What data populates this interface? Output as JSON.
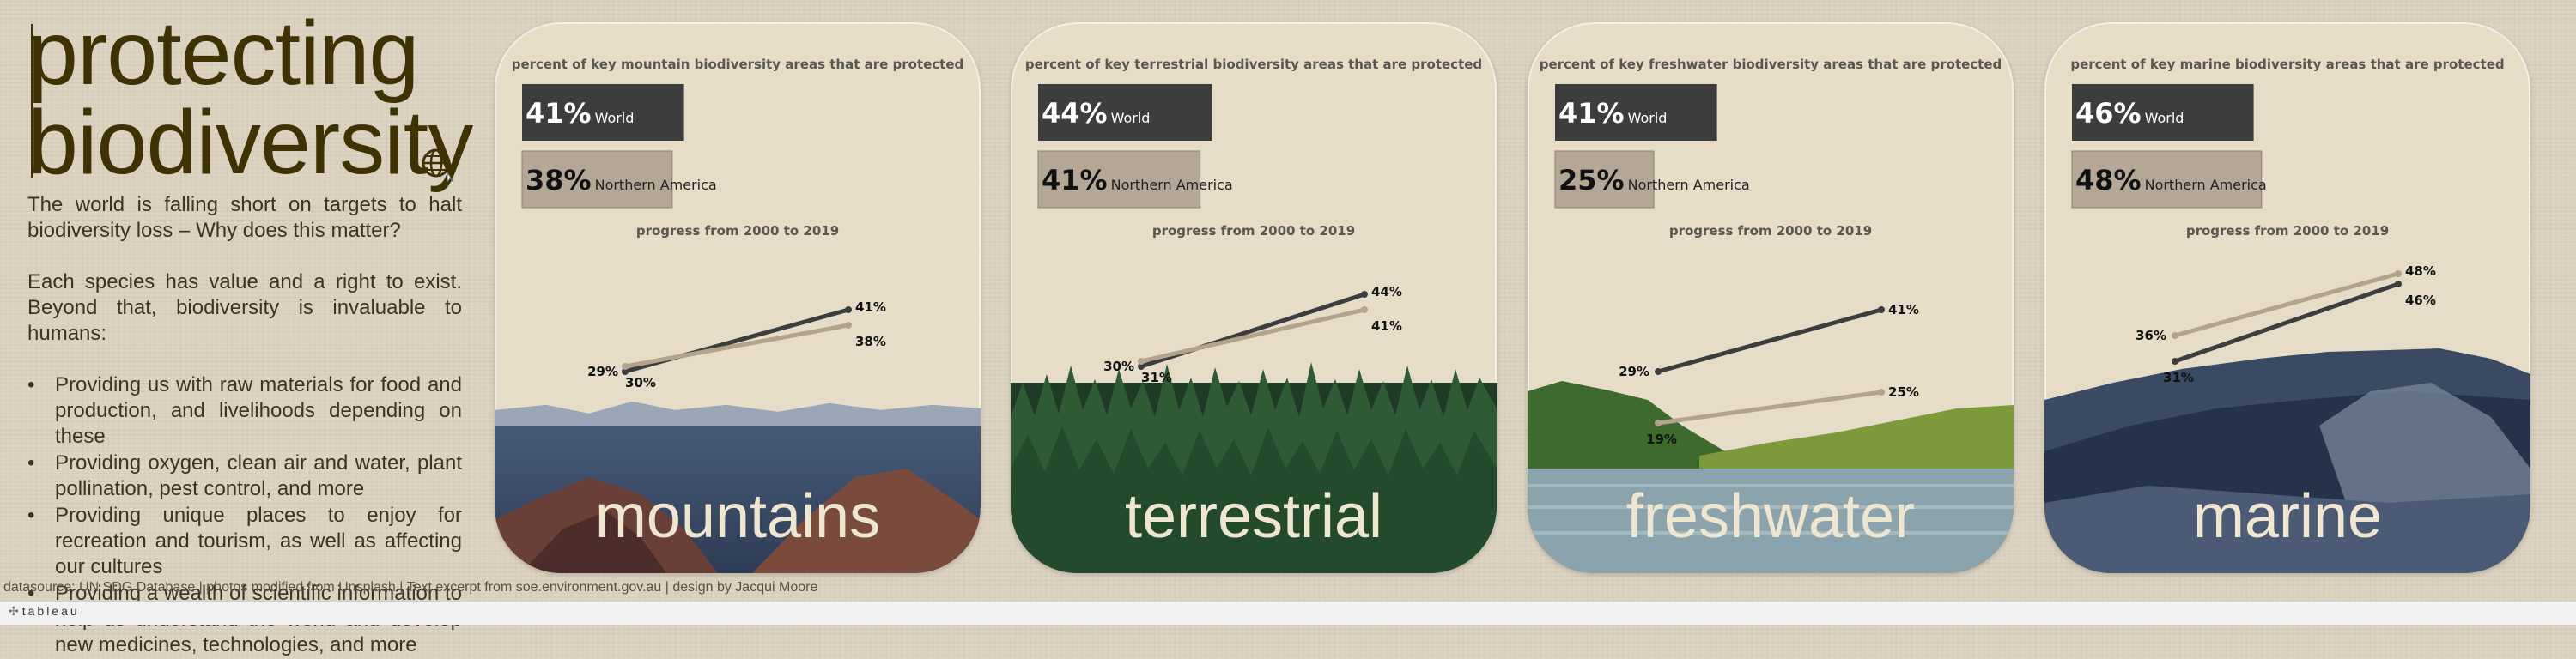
{
  "title": {
    "line1": "protecting",
    "line2": "biodiversity"
  },
  "intro": {
    "p1": "The world is falling short on targets to halt biodiversity loss – Why does this matter?",
    "p2": "Each species has value and a right to exist. Beyond that, biodiversity is invaluable to humans:",
    "bullets": [
      "Providing us with raw materials for food and production, and livelihoods depending on these",
      "Providing oxygen, clean air and water, plant pollination, pest control, and more",
      "Providing unique places to enjoy for recreation and tourism, as well as affecting our cultures",
      "Providing a wealth of scientific information to help us understand the world and develop new medicines, technologies, and more"
    ]
  },
  "footer": {
    "source": "datasource: UN SDG Database | photos modified from Unsplash | Text excerpt from soe.environment.gov.au | design by Jacqui Moore",
    "brand": "tableau"
  },
  "colors": {
    "world": "#3d3d3d",
    "north_america": "#b5a795",
    "accent_text": "#3e3205",
    "panel_bg": "#e6dcc8",
    "na_line": "#b3a38d"
  },
  "icons": {
    "globe": "globe-icon",
    "brand": "tableau-logo-icon"
  },
  "chart_data": [
    {
      "type": "bar",
      "id": "mountains",
      "biome_label": "mountains",
      "title": "percent of key mountain biodiversity areas that are protected",
      "categories": [
        "World",
        "Northern America"
      ],
      "values": [
        41,
        38
      ],
      "value_labels": [
        "41%",
        "38%"
      ],
      "progress": {
        "type": "line",
        "title": "progress from 2000 to 2019",
        "x": [
          2000,
          2019
        ],
        "series": [
          {
            "name": "World",
            "values": [
              29,
              41
            ],
            "labels": [
              "29%",
              "41%"
            ]
          },
          {
            "name": "Northern America",
            "values": [
              30,
              38
            ],
            "labels": [
              "30%",
              "38%"
            ]
          }
        ]
      }
    },
    {
      "type": "bar",
      "id": "terrestrial",
      "biome_label": "terrestrial",
      "title": "percent of key terrestrial biodiversity areas that are protected",
      "categories": [
        "World",
        "Northern America"
      ],
      "values": [
        44,
        41
      ],
      "value_labels": [
        "44%",
        "41%"
      ],
      "progress": {
        "type": "line",
        "title": "progress from 2000 to 2019",
        "x": [
          2000,
          2019
        ],
        "series": [
          {
            "name": "World",
            "values": [
              30,
              44
            ],
            "labels": [
              "30%",
              "44%"
            ]
          },
          {
            "name": "Northern America",
            "values": [
              31,
              41
            ],
            "labels": [
              "31%",
              "41%"
            ]
          }
        ]
      }
    },
    {
      "type": "bar",
      "id": "freshwater",
      "biome_label": "freshwater",
      "title": "percent of key freshwater biodiversity areas that are protected",
      "categories": [
        "World",
        "Northern America"
      ],
      "values": [
        41,
        25
      ],
      "value_labels": [
        "41%",
        "25%"
      ],
      "progress": {
        "type": "line",
        "title": "progress from 2000 to 2019",
        "x": [
          2000,
          2019
        ],
        "series": [
          {
            "name": "World",
            "values": [
              29,
              41
            ],
            "labels": [
              "29%",
              "41%"
            ]
          },
          {
            "name": "Northern America",
            "values": [
              19,
              25
            ],
            "labels": [
              "19%",
              "25%"
            ]
          }
        ]
      }
    },
    {
      "type": "bar",
      "id": "marine",
      "biome_label": "marine",
      "title": "percent of key marine biodiversity areas that are protected",
      "categories": [
        "World",
        "Northern America"
      ],
      "values": [
        46,
        48
      ],
      "value_labels": [
        "46%",
        "48%"
      ],
      "progress": {
        "type": "line",
        "title": "progress from 2000 to 2019",
        "x": [
          2000,
          2019
        ],
        "series": [
          {
            "name": "World",
            "values": [
              31,
              46
            ],
            "labels": [
              "31%",
              "46%"
            ]
          },
          {
            "name": "Northern America",
            "values": [
              36,
              48
            ],
            "labels": [
              "36%",
              "48%"
            ]
          }
        ]
      }
    }
  ]
}
